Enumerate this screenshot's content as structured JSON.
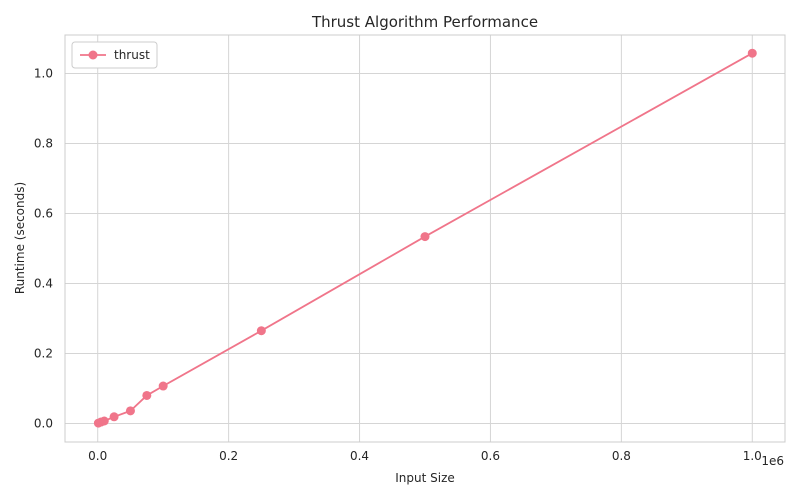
{
  "chart_data": {
    "type": "line",
    "title": "Thrust Algorithm Performance",
    "xlabel": "Input Size",
    "ylabel": "Runtime (seconds)",
    "x_offset_text": "1e6",
    "xlim": [
      -50000,
      1050000
    ],
    "ylim": [
      -0.053,
      1.11
    ],
    "xticks": [
      0,
      200000,
      400000,
      600000,
      800000,
      1000000
    ],
    "xtick_labels": [
      "0.0",
      "0.2",
      "0.4",
      "0.6",
      "0.8",
      "1.0"
    ],
    "yticks": [
      0,
      0.2,
      0.4,
      0.6,
      0.8,
      1.0
    ],
    "ytick_labels": [
      "0.0",
      "0.2",
      "0.4",
      "0.6",
      "0.8",
      "1.0"
    ],
    "grid": true,
    "legend_position": "top-left",
    "series": [
      {
        "name": "thrust",
        "color": "#f0758a",
        "marker": "circle",
        "x": [
          1000,
          5000,
          10000,
          25000,
          50000,
          75000,
          100000,
          250000,
          500000,
          1000000
        ],
        "y": [
          0.001,
          0.004,
          0.007,
          0.019,
          0.036,
          0.08,
          0.107,
          0.265,
          0.534,
          1.058
        ]
      }
    ]
  }
}
